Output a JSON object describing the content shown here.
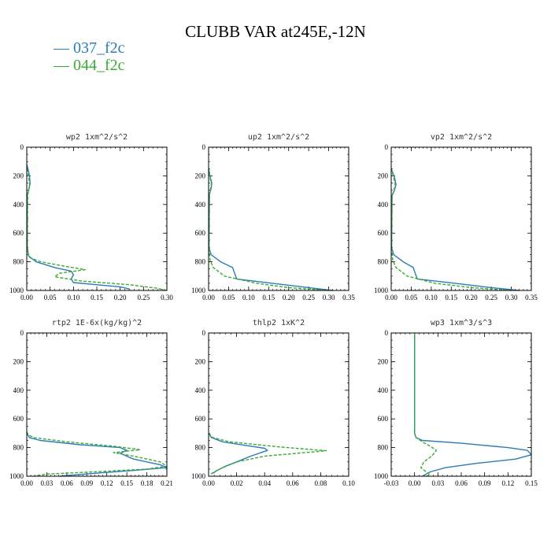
{
  "title": "CLUBB VAR at245E,-12N",
  "legend": [
    {
      "name": "037_f2c",
      "color": "#2c7bb6",
      "dash": "solid"
    },
    {
      "name": "044_f2c",
      "color": "#3aaa35",
      "dash": "dashed"
    }
  ],
  "chart_data": [
    {
      "type": "line",
      "title": "wp2  1xm^2/s^2",
      "xlim": [
        0,
        0.3
      ],
      "ylim": [
        1000,
        0
      ],
      "xticks": [
        "0.00",
        "0.05",
        "0.10",
        "0.15",
        "0.20",
        "0.25",
        "0.30"
      ],
      "xtick_values": [
        0,
        0.05,
        0.1,
        0.15,
        0.2,
        0.25,
        0.3
      ],
      "yticks": [
        "0",
        "200",
        "400",
        "600",
        "800",
        "1000"
      ],
      "ytick_values": [
        0,
        200,
        400,
        600,
        800,
        1000
      ],
      "series": [
        {
          "name": "037_f2c",
          "x": [
            0,
            0.004,
            0.006,
            0.007,
            0.004,
            0.001,
            0.001,
            0.004,
            0.02,
            0.06,
            0.095,
            0.1,
            0.095,
            0.1,
            0.2,
            0.22,
            0.22
          ],
          "y": [
            120,
            170,
            210,
            255,
            300,
            340,
            700,
            760,
            800,
            840,
            865,
            890,
            920,
            945,
            975,
            990,
            1000
          ]
        },
        {
          "name": "044_f2c",
          "x": [
            0,
            0.003,
            0.005,
            0.006,
            0.004,
            0.002,
            0.001,
            0.005,
            0.03,
            0.08,
            0.125,
            0.07,
            0.06,
            0.12,
            0.22,
            0.28,
            0.3
          ],
          "y": [
            150,
            190,
            230,
            260,
            300,
            330,
            700,
            770,
            800,
            830,
            855,
            880,
            905,
            935,
            960,
            985,
            1000
          ]
        }
      ]
    },
    {
      "type": "line",
      "title": "up2  1xm^2/s^2",
      "xlim": [
        0,
        0.35
      ],
      "ylim": [
        1000,
        0
      ],
      "xticks": [
        "0.00",
        "0.05",
        "0.10",
        "0.15",
        "0.20",
        "0.25",
        "0.30",
        "0.35"
      ],
      "xtick_values": [
        0,
        0.05,
        0.1,
        0.15,
        0.2,
        0.25,
        0.3,
        0.35
      ],
      "yticks": [
        "0",
        "200",
        "400",
        "600",
        "800",
        "1000"
      ],
      "ytick_values": [
        0,
        200,
        400,
        600,
        800,
        1000
      ],
      "series": [
        {
          "name": "037_f2c",
          "x": [
            0,
            0.005,
            0.008,
            0.006,
            0.002,
            0.001,
            0.006,
            0.03,
            0.06,
            0.065,
            0.07,
            0.16,
            0.25,
            0.31
          ],
          "y": [
            150,
            220,
            250,
            290,
            330,
            700,
            750,
            800,
            840,
            880,
            920,
            950,
            980,
            1000
          ]
        },
        {
          "name": "044_f2c",
          "x": [
            0,
            0.004,
            0.007,
            0.005,
            0.002,
            0.001,
            0.004,
            0.012,
            0.04,
            0.12,
            0.2,
            0.3
          ],
          "y": [
            150,
            220,
            255,
            290,
            330,
            700,
            790,
            840,
            900,
            950,
            980,
            1000
          ]
        }
      ]
    },
    {
      "type": "line",
      "title": "vp2  1xm^2/s^2",
      "xlim": [
        0,
        0.35
      ],
      "ylim": [
        1000,
        0
      ],
      "xticks": [
        "0.00",
        "0.05",
        "0.10",
        "0.15",
        "0.20",
        "0.25",
        "0.30",
        "0.35"
      ],
      "xtick_values": [
        0,
        0.05,
        0.1,
        0.15,
        0.2,
        0.25,
        0.3,
        0.35
      ],
      "yticks": [
        "0",
        "200",
        "400",
        "600",
        "800",
        "1000"
      ],
      "ytick_values": [
        0,
        200,
        400,
        600,
        800,
        1000
      ],
      "series": [
        {
          "name": "037_f2c",
          "x": [
            0,
            0.008,
            0.012,
            0.008,
            0.002,
            0.001,
            0.006,
            0.03,
            0.055,
            0.06,
            0.065,
            0.16,
            0.25,
            0.32
          ],
          "y": [
            150,
            210,
            260,
            300,
            340,
            700,
            750,
            800,
            840,
            880,
            920,
            950,
            980,
            1000
          ]
        },
        {
          "name": "044_f2c",
          "x": [
            0,
            0.006,
            0.01,
            0.007,
            0.002,
            0.001,
            0.004,
            0.012,
            0.04,
            0.11,
            0.2,
            0.3
          ],
          "y": [
            150,
            210,
            260,
            300,
            340,
            700,
            790,
            840,
            900,
            950,
            980,
            1000
          ]
        }
      ]
    },
    {
      "type": "line",
      "title": "rtp2  1E-6x(kg/kg)^2",
      "xlim": [
        0,
        0.21
      ],
      "ylim": [
        1000,
        0
      ],
      "xticks": [
        "0.00",
        "0.03",
        "0.06",
        "0.09",
        "0.12",
        "0.15",
        "0.18",
        "0.21"
      ],
      "xtick_values": [
        0,
        0.03,
        0.06,
        0.09,
        0.12,
        0.15,
        0.18,
        0.21
      ],
      "yticks": [
        "0",
        "200",
        "400",
        "600",
        "800",
        "1000"
      ],
      "ytick_values": [
        0,
        200,
        400,
        600,
        800,
        1000
      ],
      "series": [
        {
          "name": "037_f2c",
          "x": [
            0,
            0.002,
            0.004,
            0.02,
            0.08,
            0.14,
            0.15,
            0.14,
            0.16,
            0.2,
            0.21,
            0.16,
            0.1,
            0.06,
            0.05
          ],
          "y": [
            700,
            715,
            730,
            750,
            780,
            800,
            820,
            840,
            880,
            920,
            940,
            960,
            980,
            995,
            1000
          ]
        },
        {
          "name": "044_f2c",
          "x": [
            0,
            0.002,
            0.01,
            0.06,
            0.13,
            0.17,
            0.13,
            0.16,
            0.2,
            0.21,
            0.18,
            0.1,
            0.03,
            0.015,
            0.01
          ],
          "y": [
            690,
            710,
            730,
            760,
            790,
            815,
            835,
            860,
            900,
            930,
            950,
            970,
            985,
            995,
            1000
          ]
        }
      ]
    },
    {
      "type": "line",
      "title": "thlp2  1xK^2",
      "xlim": [
        0,
        0.1
      ],
      "ylim": [
        1000,
        0
      ],
      "xticks": [
        "0.00",
        "0.02",
        "0.04",
        "0.06",
        "0.08",
        "0.10"
      ],
      "xtick_values": [
        0,
        0.02,
        0.04,
        0.06,
        0.08,
        0.1
      ],
      "yticks": [
        "0",
        "200",
        "400",
        "600",
        "800",
        "1000"
      ],
      "ytick_values": [
        0,
        200,
        400,
        600,
        800,
        1000
      ],
      "series": [
        {
          "name": "037_f2c",
          "x": [
            0,
            0.002,
            0.01,
            0.03,
            0.04,
            0.042,
            0.03,
            0.02,
            0.012,
            0.006,
            0.003
          ],
          "y": [
            700,
            730,
            760,
            790,
            805,
            820,
            860,
            900,
            930,
            960,
            980
          ]
        },
        {
          "name": "044_f2c",
          "x": [
            0,
            0.003,
            0.015,
            0.05,
            0.084,
            0.04,
            0.02,
            0.01,
            0.004,
            0.001
          ],
          "y": [
            700,
            730,
            760,
            795,
            822,
            860,
            900,
            940,
            970,
            990
          ]
        }
      ]
    },
    {
      "type": "line",
      "title": "wp3  1xm^3/s^3",
      "xlim": [
        -0.03,
        0.15
      ],
      "ylim": [
        1000,
        0
      ],
      "xticks": [
        "-0.03",
        "0.00",
        "0.03",
        "0.06",
        "0.09",
        "0.12",
        "0.15"
      ],
      "xtick_values": [
        -0.03,
        0,
        0.03,
        0.06,
        0.09,
        0.12,
        0.15
      ],
      "yticks": [
        "0",
        "200",
        "400",
        "600",
        "800",
        "1000"
      ],
      "ytick_values": [
        0,
        200,
        400,
        600,
        800,
        1000
      ],
      "series": [
        {
          "name": "037_f2c",
          "x": [
            0,
            0,
            0,
            0.002,
            0.01,
            0.06,
            0.12,
            0.145,
            0.15,
            0.13,
            0.08,
            0.04,
            0.02,
            0.01
          ],
          "y": [
            0,
            400,
            700,
            730,
            750,
            770,
            800,
            820,
            850,
            880,
            910,
            940,
            970,
            1000
          ]
        },
        {
          "name": "044_f2c",
          "x": [
            0,
            0,
            0,
            0.002,
            0.01,
            0.02,
            0.028,
            0.022,
            0.012,
            0.008,
            0.015,
            0.02,
            0.015
          ],
          "y": [
            0,
            400,
            700,
            730,
            760,
            790,
            820,
            860,
            900,
            940,
            970,
            990,
            1000
          ]
        }
      ]
    }
  ]
}
